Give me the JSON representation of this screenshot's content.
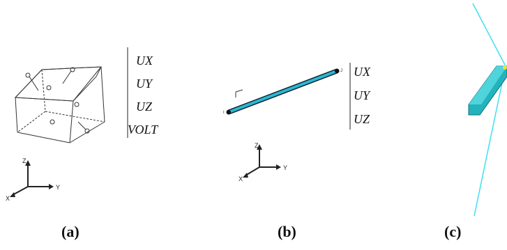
{
  "panels": [
    {
      "dof_labels": [
        "UX",
        "UY",
        "UZ",
        "VOLT"
      ],
      "axes": {
        "z": "Z",
        "x": "X",
        "y": "Y"
      },
      "caption": "(a)"
    },
    {
      "dof_labels": [
        "UX",
        "UY",
        "UZ"
      ],
      "node_labels": [
        "I",
        "J"
      ],
      "axes": {
        "z": "Z",
        "x": "X",
        "y": "Y"
      },
      "caption": "(b)"
    },
    {
      "caption": "(c)"
    }
  ]
}
